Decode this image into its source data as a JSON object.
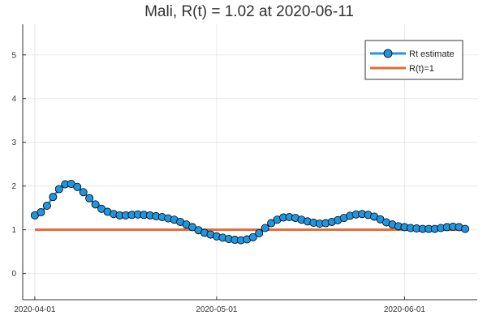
{
  "chart_data": {
    "type": "line",
    "title": "Mali, R(t) = 1.02 at 2020-06-11",
    "xlabel": "",
    "ylabel": "",
    "x_start": "2020-04-01",
    "x_end": "2020-06-11",
    "xlim": [
      "2020-03-30",
      "2020-06-13"
    ],
    "ylim": [
      -0.6,
      5.7
    ],
    "x_ticks": [
      "2020-04-01",
      "2020-05-01",
      "2020-06-01"
    ],
    "y_ticks": [
      0,
      1,
      2,
      3,
      4,
      5
    ],
    "grid": true,
    "legend_position": "top-right",
    "series": [
      {
        "name": "Rt estimate",
        "color": "#1e96e0",
        "marker": "circle",
        "values": [
          1.33,
          1.4,
          1.55,
          1.75,
          1.93,
          2.04,
          2.05,
          1.98,
          1.86,
          1.72,
          1.58,
          1.48,
          1.41,
          1.36,
          1.33,
          1.33,
          1.34,
          1.35,
          1.34,
          1.33,
          1.31,
          1.29,
          1.26,
          1.23,
          1.18,
          1.12,
          1.06,
          0.99,
          0.93,
          0.89,
          0.85,
          0.82,
          0.79,
          0.77,
          0.76,
          0.78,
          0.83,
          0.92,
          1.04,
          1.15,
          1.23,
          1.28,
          1.29,
          1.27,
          1.23,
          1.19,
          1.16,
          1.14,
          1.15,
          1.18,
          1.22,
          1.27,
          1.32,
          1.35,
          1.36,
          1.34,
          1.3,
          1.24,
          1.17,
          1.12,
          1.08,
          1.06,
          1.04,
          1.03,
          1.02,
          1.02,
          1.02,
          1.04,
          1.06,
          1.07,
          1.06,
          1.02
        ]
      },
      {
        "name": "R(t)=1",
        "color": "#e06c35",
        "constant": 1
      }
    ]
  }
}
